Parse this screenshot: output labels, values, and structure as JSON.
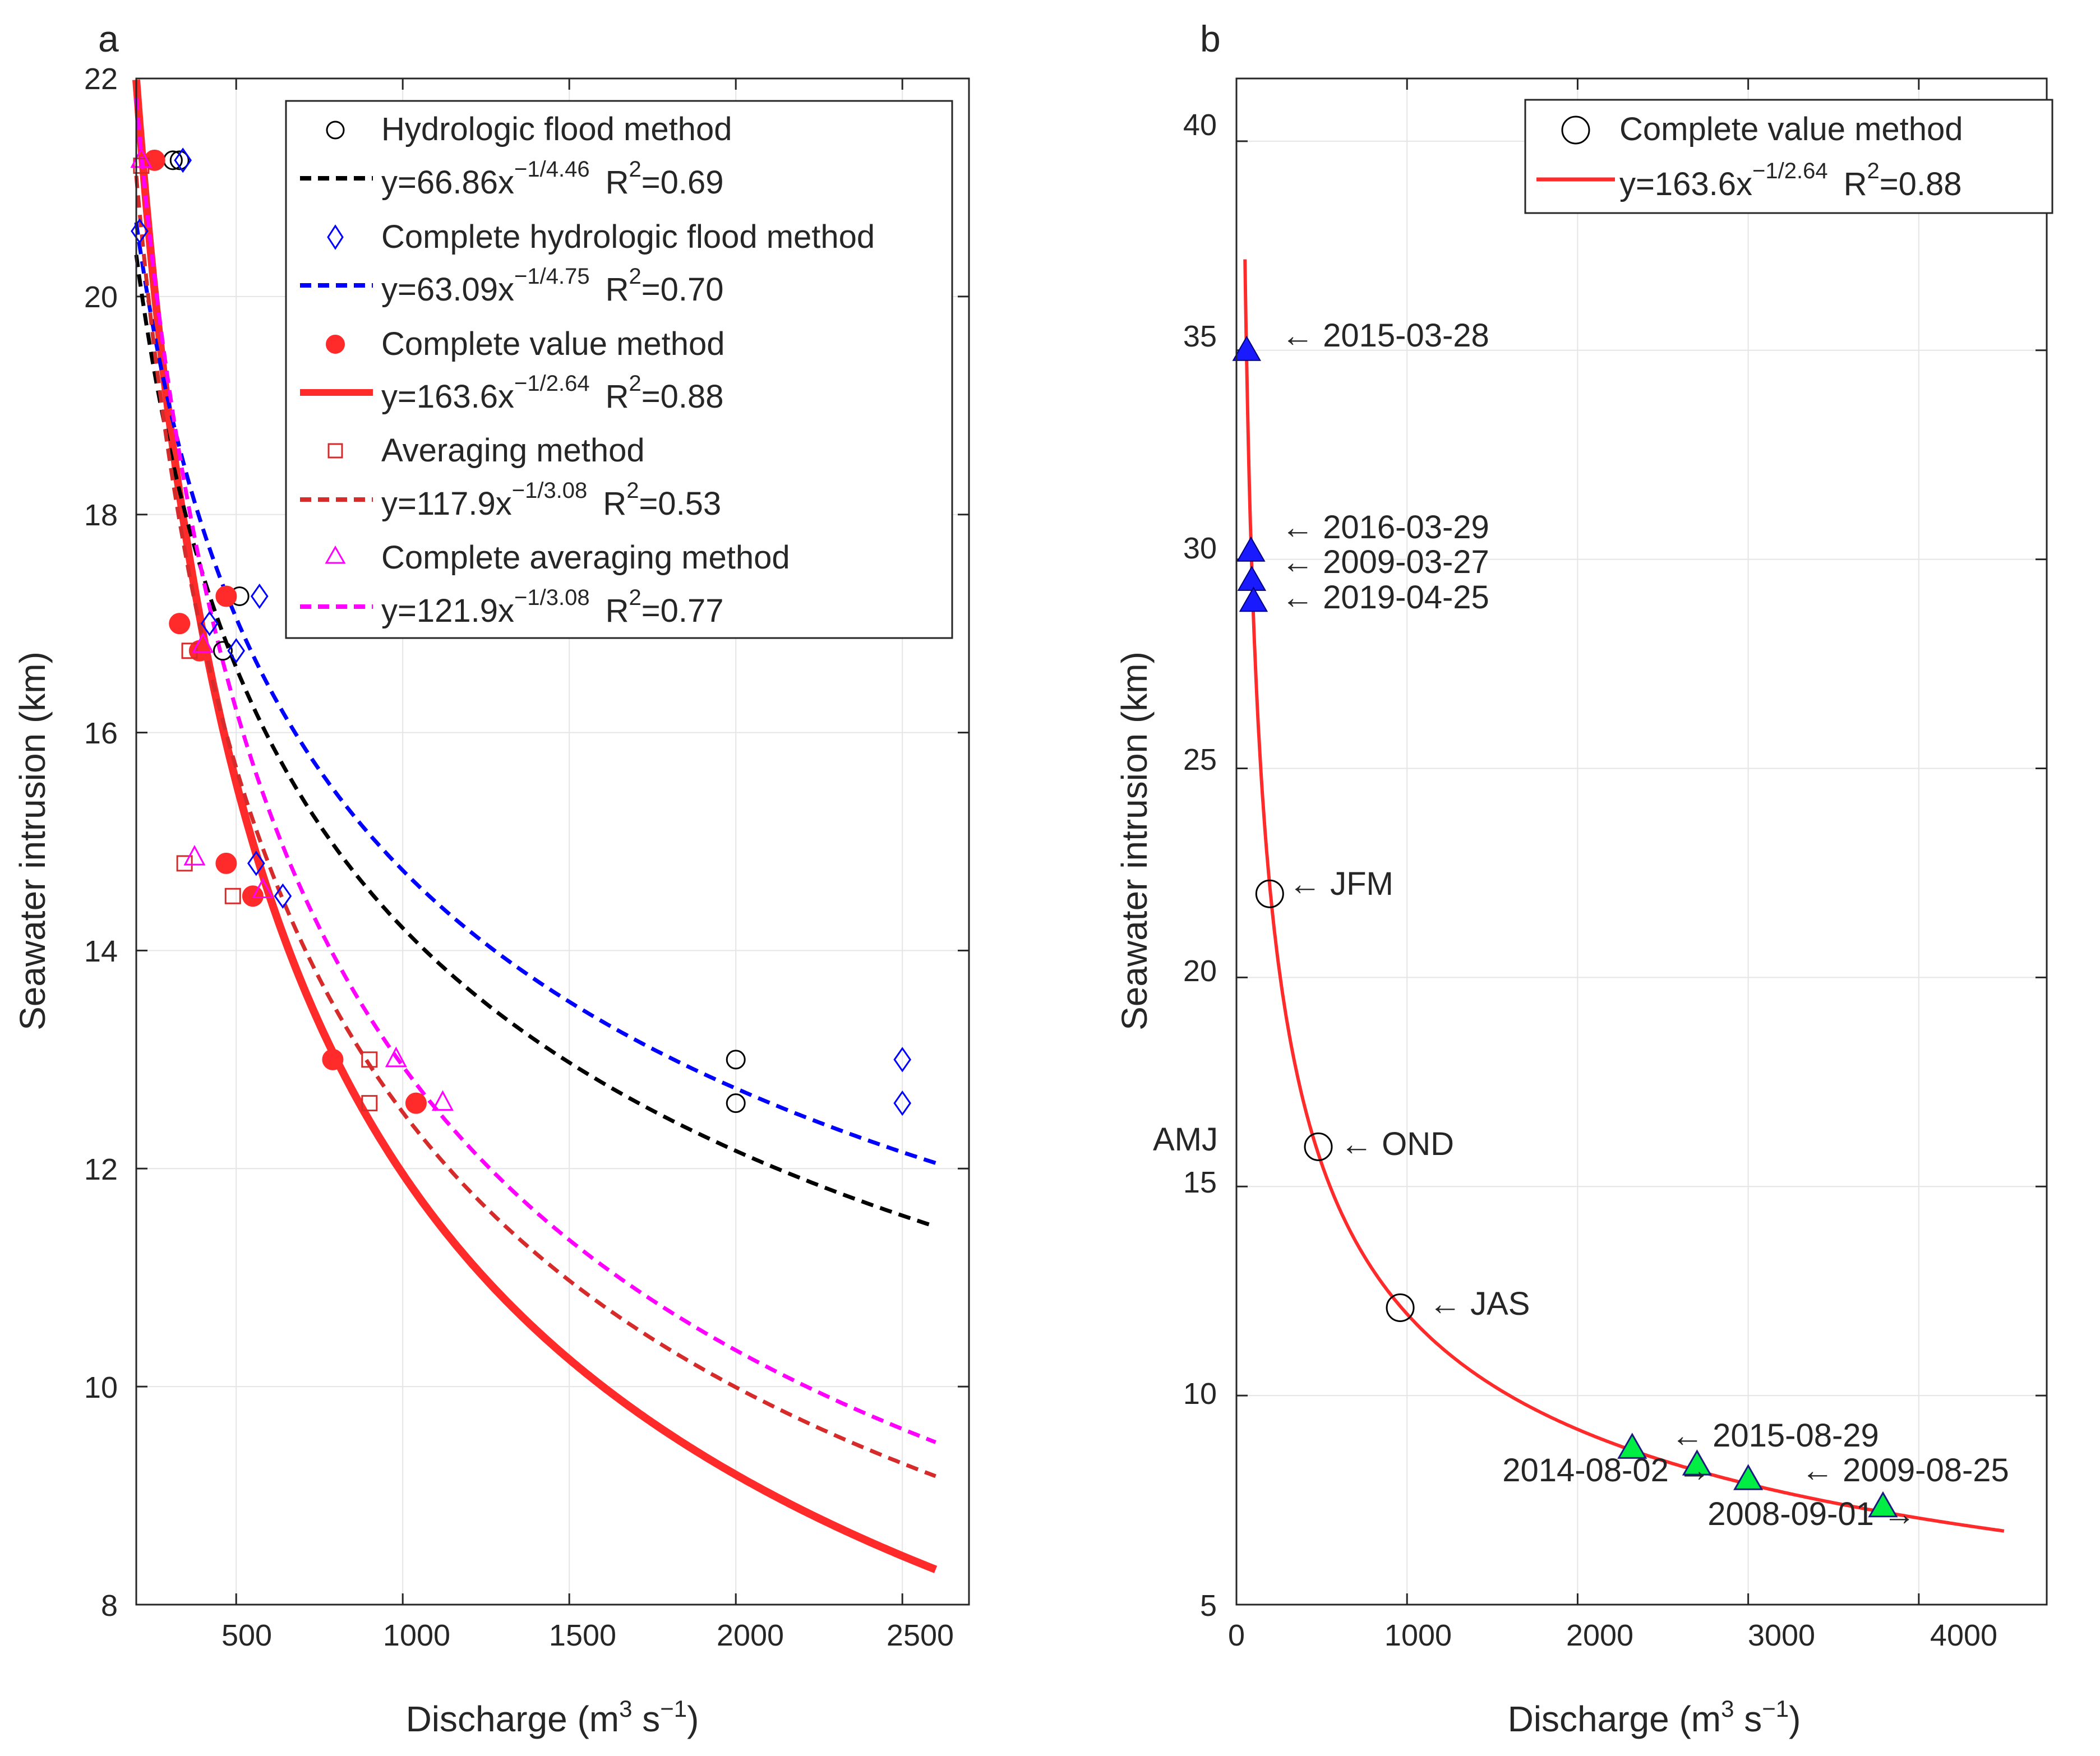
{
  "panels": {
    "a": {
      "label": "a",
      "xlabel_text": "Discharge (m",
      "xlabel_sup1": "3",
      "xlabel_mid": " s",
      "xlabel_sup2": "−1",
      "xlabel_end": ")",
      "ylabel": "Seawater intrusion (km)",
      "xticks": [
        "500",
        "1000",
        "1500",
        "2000",
        "2500"
      ],
      "yticks": [
        "8",
        "10",
        "12",
        "14",
        "16",
        "18",
        "20",
        "22"
      ],
      "legend": [
        {
          "label": "Hydrologic flood method",
          "fit": "y=66.86x",
          "exp": "−1/4.46",
          "r2_label": "R",
          "r2_sup": "2",
          "r2_value": "=0.69"
        },
        {
          "label": "Complete hydrologic flood method",
          "fit": "y=63.09x",
          "exp": "−1/4.75",
          "r2_label": "R",
          "r2_sup": "2",
          "r2_value": "=0.70"
        },
        {
          "label": "Complete value method",
          "fit": "y=163.6x",
          "exp": "−1/2.64",
          "r2_label": "R",
          "r2_sup": "2",
          "r2_value": "=0.88"
        },
        {
          "label": "Averaging method",
          "fit": "y=117.9x",
          "exp": "−1/3.08",
          "r2_label": "R",
          "r2_sup": "2",
          "r2_value": "=0.53"
        },
        {
          "label": "Complete averaging method",
          "fit": "y=121.9x",
          "exp": "−1/3.08",
          "r2_label": "R",
          "r2_sup": "2",
          "r2_value": "=0.77"
        }
      ]
    },
    "b": {
      "label": "b",
      "xlabel_text": "Discharge (m",
      "xlabel_sup1": "3",
      "xlabel_mid": " s",
      "xlabel_sup2": "−1",
      "xlabel_end": ")",
      "ylabel": "Seawater intrusion (km)",
      "xticks": [
        "0",
        "1000",
        "2000",
        "3000",
        "4000"
      ],
      "yticks": [
        "5",
        "10",
        "15",
        "20",
        "25",
        "30",
        "35",
        "40"
      ],
      "legend": [
        {
          "label": "Complete value method",
          "fit": "y=163.6x",
          "exp": "−1/2.64",
          "r2_label": "R",
          "r2_sup": "2",
          "r2_value": "=0.88"
        }
      ],
      "annotations": {
        "d20150328": "← 2015-03-28",
        "d20160329": "← 2016-03-29",
        "d20090327": "← 2009-03-27",
        "d20190425": "← 2019-04-25",
        "jfm": "← JFM",
        "amj": "AMJ",
        "ond": "← OND",
        "jas": "← JAS",
        "d20150829": "← 2015-08-29",
        "d20140802": "2014-08-02 →",
        "d20090825": "← 2009-08-25",
        "d20080901": "2008-09-01 →"
      }
    }
  },
  "colors": {
    "black": "#000000",
    "blue": "#0000ff",
    "red": "#ff2a2a",
    "darkred": "#d62b2b",
    "magenta": "#ff00ff",
    "green": "#00ee44",
    "navy": "#1a1aff",
    "grid": "#e5e5e5"
  },
  "chart_data": [
    {
      "panel": "a",
      "type": "scatter",
      "xlabel": "Discharge (m3 s−1)",
      "ylabel": "Seawater intrusion (km)",
      "xlim": [
        200,
        2700
      ],
      "ylim": [
        8,
        22
      ],
      "grid": true,
      "legend_position": "top-right",
      "series": [
        {
          "name": "Hydrologic flood method",
          "marker": "circle-open",
          "color": "#000000",
          "x": [
            310,
            330,
            460,
            510,
            2000,
            2000
          ],
          "y": [
            21.25,
            21.25,
            16.75,
            17.25,
            13.0,
            12.6
          ]
        },
        {
          "name": "Complete hydrologic flood method",
          "marker": "diamond-open",
          "color": "#0000ff",
          "x": [
            210,
            340,
            420,
            500,
            560,
            570,
            640,
            2500,
            2500
          ],
          "y": [
            20.6,
            21.25,
            17.0,
            16.75,
            14.8,
            17.25,
            14.5,
            13.0,
            12.6
          ]
        },
        {
          "name": "Complete value method",
          "marker": "circle-filled",
          "color": "#ff2a2a",
          "x": [
            255,
            330,
            390,
            470,
            470,
            550,
            790,
            1040
          ],
          "y": [
            21.25,
            17.0,
            16.75,
            17.25,
            14.8,
            14.5,
            13.0,
            12.6
          ]
        },
        {
          "name": "Averaging method",
          "marker": "square-open",
          "color": "#d62b2b",
          "x": [
            215,
            345,
            360,
            490,
            900,
            900
          ],
          "y": [
            21.2,
            14.8,
            16.75,
            14.5,
            13.0,
            12.6
          ]
        },
        {
          "name": "Complete averaging method",
          "marker": "triangle-open",
          "color": "#ff00ff",
          "x": [
            215,
            375,
            400,
            580,
            980,
            1120
          ],
          "y": [
            21.25,
            14.85,
            16.8,
            14.55,
            13.0,
            12.6
          ]
        }
      ],
      "fits": [
        {
          "name": "y=66.86x^(−1/4.46) R2=0.69",
          "a": 66.86,
          "b": 4.46,
          "style": "dashed",
          "color": "#000000",
          "xrange": [
            200,
            2600
          ]
        },
        {
          "name": "y=63.09x^(−1/4.75) R2=0.70",
          "a": 63.09,
          "b": 4.75,
          "style": "dashed",
          "color": "#0000ff",
          "xrange": [
            200,
            2600
          ]
        },
        {
          "name": "y=163.6x^(−1/2.64) R2=0.88",
          "a": 163.6,
          "b": 2.64,
          "style": "solid",
          "color": "#ff2a2a",
          "xrange": [
            200,
            2600
          ]
        },
        {
          "name": "y=117.9x^(−1/3.08) R2=0.53",
          "a": 117.9,
          "b": 3.08,
          "style": "dashed",
          "color": "#d62b2b",
          "xrange": [
            200,
            2600
          ]
        },
        {
          "name": "y=121.9x^(−1/3.08) R2=0.77",
          "a": 121.9,
          "b": 3.08,
          "style": "dashed",
          "color": "#ff00ff",
          "xrange": [
            200,
            2600
          ]
        }
      ]
    },
    {
      "panel": "b",
      "type": "line",
      "xlabel": "Discharge (m3 s−1)",
      "ylabel": "Seawater intrusion (km)",
      "xlim": [
        0,
        4750
      ],
      "ylim": [
        5,
        41.5
      ],
      "grid": true,
      "legend_position": "top-right",
      "fit": {
        "name": "y=163.6x^(−1/2.64) R2=0.88",
        "a": 163.6,
        "b": 2.64,
        "color": "#ff2a2a",
        "xrange": [
          50,
          4500
        ]
      },
      "seasonal_points": [
        {
          "label": "JFM",
          "x": 195,
          "y": 22.0
        },
        {
          "label": "AMJ",
          "x": 480,
          "y": 15.95
        },
        {
          "label": "OND",
          "x": 480,
          "y": 15.95
        },
        {
          "label": "JAS",
          "x": 960,
          "y": 12.1
        }
      ],
      "dry_events": [
        {
          "date": "2015-03-28",
          "x": 60,
          "y": 35.0
        },
        {
          "date": "2016-03-29",
          "x": 85,
          "y": 30.2
        },
        {
          "date": "2009-03-27",
          "x": 90,
          "y": 29.5
        },
        {
          "date": "2019-04-25",
          "x": 100,
          "y": 29.0
        }
      ],
      "wet_events": [
        {
          "date": "2015-08-29",
          "x": 2320,
          "y": 8.75
        },
        {
          "date": "2014-08-02",
          "x": 2700,
          "y": 8.35
        },
        {
          "date": "2009-08-25",
          "x": 3000,
          "y": 8.0
        },
        {
          "date": "2008-09-01",
          "x": 3790,
          "y": 7.35
        }
      ]
    }
  ]
}
